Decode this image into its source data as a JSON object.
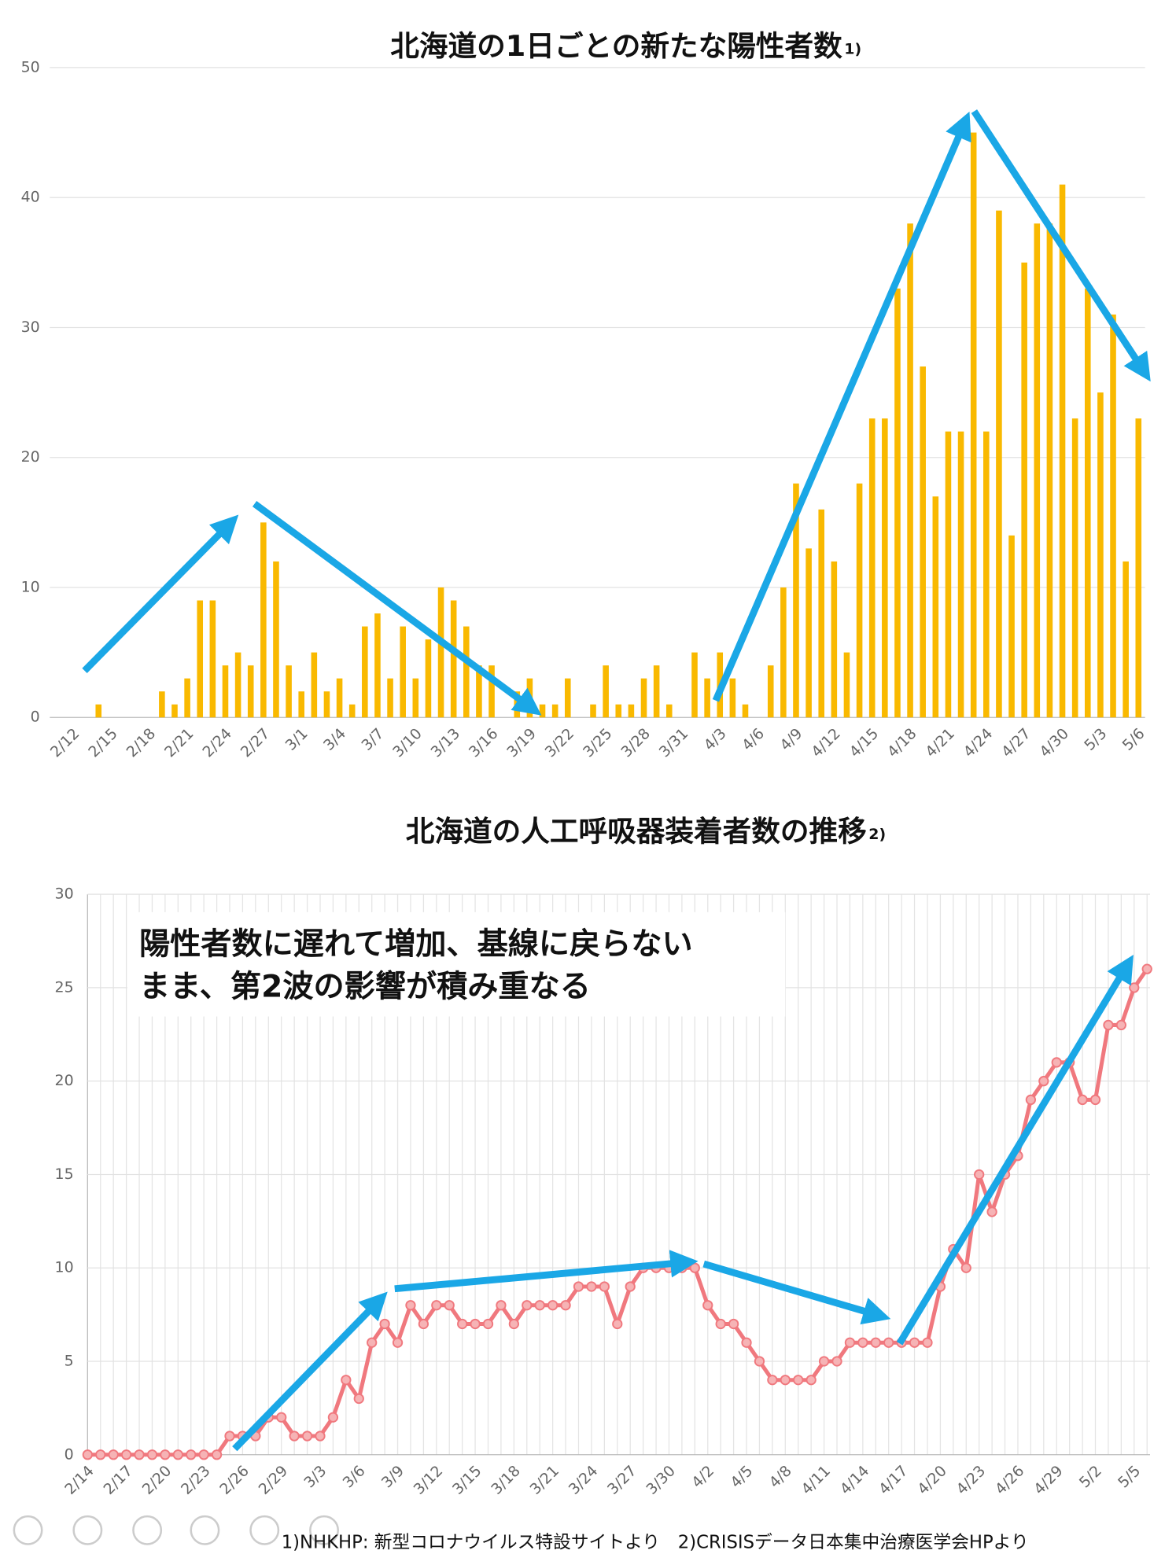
{
  "chart_data": [
    {
      "type": "bar",
      "title": "北海道の1日ごとの新たな陽性者数",
      "title_note": "1)",
      "color": "#f9b900",
      "categories": [
        "2/12",
        null,
        null,
        "2/15",
        null,
        null,
        "2/18",
        null,
        null,
        "2/21",
        null,
        null,
        "2/24",
        null,
        null,
        "2/27",
        null,
        null,
        "3/1",
        null,
        null,
        "3/4",
        null,
        null,
        "3/7",
        null,
        null,
        "3/10",
        null,
        null,
        "3/13",
        null,
        null,
        "3/16",
        null,
        null,
        "3/19",
        null,
        null,
        "3/22",
        null,
        null,
        "3/25",
        null,
        null,
        "3/28",
        null,
        null,
        "3/31",
        null,
        null,
        "4/3",
        null,
        null,
        "4/6",
        null,
        null,
        "4/9",
        null,
        null,
        "4/12",
        null,
        null,
        "4/15",
        null,
        null,
        "4/18",
        null,
        null,
        "4/21",
        null,
        null,
        "4/24",
        null,
        null,
        "4/27",
        null,
        null,
        "4/30",
        null,
        null,
        "5/3",
        null,
        null,
        "5/6"
      ],
      "values": [
        0,
        0,
        1,
        0,
        0,
        0,
        0,
        2,
        1,
        3,
        9,
        9,
        4,
        5,
        4,
        15,
        12,
        4,
        2,
        5,
        2,
        3,
        1,
        7,
        8,
        3,
        7,
        3,
        6,
        10,
        9,
        7,
        4,
        4,
        0,
        2,
        3,
        1,
        1,
        3,
        0,
        1,
        4,
        1,
        1,
        3,
        4,
        1,
        0,
        5,
        3,
        5,
        3,
        1,
        0,
        4,
        10,
        18,
        13,
        16,
        12,
        5,
        18,
        23,
        23,
        33,
        38,
        27,
        17,
        22,
        22,
        45,
        22,
        39,
        14,
        35,
        38,
        38,
        41,
        23,
        33,
        25,
        31,
        12,
        23
      ],
      "ylim": [
        0,
        50
      ],
      "yticks": [
        0,
        10,
        20,
        30,
        40,
        50
      ],
      "grid": true
    },
    {
      "type": "line",
      "title": "北海道の人工呼吸器装着者数の推移",
      "title_note": "2)",
      "color": "#f0787e",
      "annotation": [
        "陽性者数に遅れて増加、基線に戻らない",
        "まま、第2波の影響が積み重なる"
      ],
      "categories": [
        "2/14",
        null,
        null,
        "2/17",
        null,
        null,
        "2/20",
        null,
        null,
        "2/23",
        null,
        null,
        "2/26",
        null,
        null,
        "2/29",
        null,
        null,
        "3/3",
        null,
        null,
        "3/6",
        null,
        null,
        "3/9",
        null,
        null,
        "3/12",
        null,
        null,
        "3/15",
        null,
        null,
        "3/18",
        null,
        null,
        "3/21",
        null,
        null,
        "3/24",
        null,
        null,
        "3/27",
        null,
        null,
        "3/30",
        null,
        null,
        "4/2",
        null,
        null,
        "4/5",
        null,
        null,
        "4/8",
        null,
        null,
        "4/11",
        null,
        null,
        "4/14",
        null,
        null,
        "4/17",
        null,
        null,
        "4/20",
        null,
        null,
        "4/23",
        null,
        null,
        "4/26",
        null,
        null,
        "4/29",
        null,
        null,
        "5/2",
        null,
        null,
        "5/5",
        null
      ],
      "values": [
        0,
        0,
        0,
        0,
        0,
        0,
        0,
        0,
        0,
        0,
        0,
        1,
        1,
        1,
        2,
        2,
        1,
        1,
        1,
        2,
        4,
        3,
        6,
        7,
        6,
        8,
        7,
        8,
        8,
        7,
        7,
        7,
        8,
        7,
        8,
        8,
        8,
        8,
        9,
        9,
        9,
        7,
        9,
        10,
        10,
        10,
        10,
        10,
        8,
        7,
        7,
        6,
        5,
        4,
        4,
        4,
        4,
        5,
        5,
        6,
        6,
        6,
        6,
        6,
        6,
        6,
        9,
        11,
        10,
        15,
        13,
        15,
        16,
        19,
        20,
        21,
        21,
        19,
        19,
        23,
        23,
        25,
        26
      ],
      "ylim": [
        0,
        30
      ],
      "yticks": [
        0,
        5,
        10,
        15,
        20,
        25,
        30
      ],
      "grid": true
    }
  ],
  "footer": "1)NHKHP: 新型コロナウイルス特設サイトより　2)CRISISデータ日本集中治療医学会HPより"
}
